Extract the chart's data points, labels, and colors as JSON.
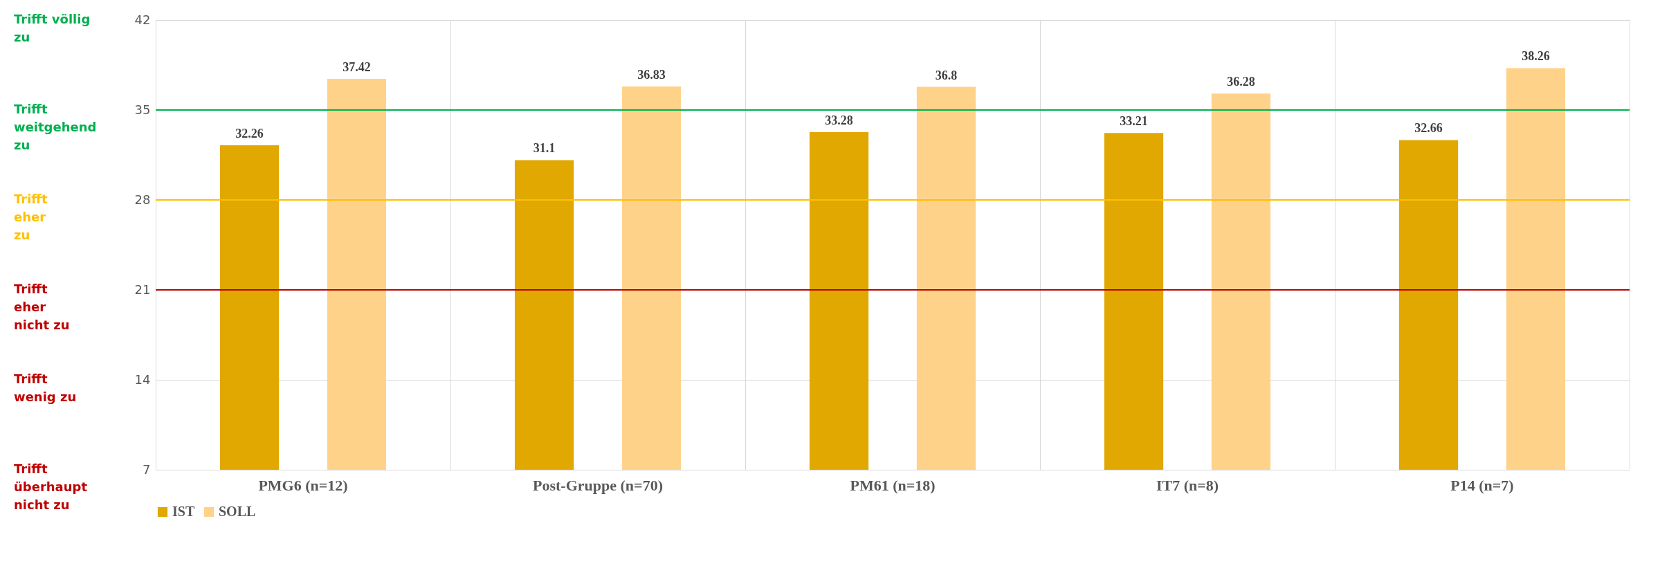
{
  "chart_data": {
    "type": "bar",
    "categories": [
      "PMG6 (n=12)",
      "Post-Gruppe (n=70)",
      "PM61 (n=18)",
      "IT7 (n=8)",
      "P14 (n=7)"
    ],
    "series": [
      {
        "name": "IST",
        "color": "#e0a800",
        "values": [
          32.26,
          31.1,
          33.28,
          33.21,
          32.66
        ]
      },
      {
        "name": "SOLL",
        "color": "#ffd28a",
        "values": [
          37.42,
          36.83,
          36.8,
          36.28,
          38.26
        ]
      }
    ],
    "ylim": [
      7,
      42
    ],
    "yticks": [
      7,
      14,
      21,
      28,
      35,
      42
    ],
    "ref_lines": [
      {
        "axis": "y",
        "value": 35,
        "color": "#00b050"
      },
      {
        "axis": "y",
        "value": 28,
        "color": "#ffc000"
      },
      {
        "axis": "y",
        "value": 21,
        "color": "#c00000"
      }
    ],
    "annotations": [
      "Trifft völlig\nzu",
      "Trifft\nweitgehend\nzu",
      "Trifft\neher\nzu",
      "Trifft\neher\nnicht zu",
      "Trifft\nwenig zu",
      "Trifft\nüberhaupt\nnicht zu"
    ],
    "data_labels": true,
    "grid": true,
    "legend": "bottom"
  }
}
